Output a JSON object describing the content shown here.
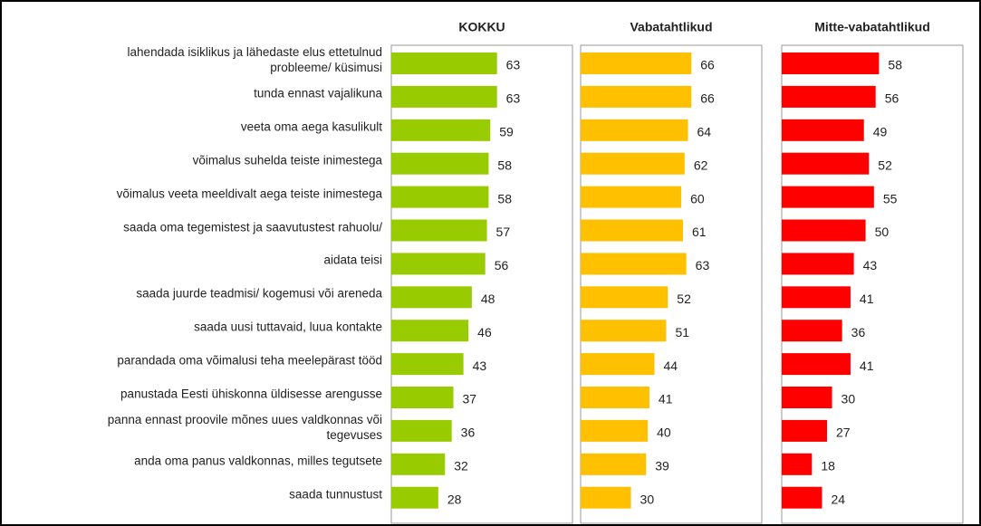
{
  "chart_data": {
    "type": "bar",
    "categories": [
      "lahendada isiklikus ja lähedaste elus ettetulnud\nprobleeme/ küsimusi",
      "tunda ennast vajalikuna",
      "veeta oma aega kasulikult",
      "võimalus suhelda teiste inimestega",
      "võimalus veeta meeldivalt aega teiste inimestega",
      "saada oma tegemistest ja saavutustest rahuolu/",
      "aidata teisi",
      "saada juurde teadmisi/ kogemusi või areneda",
      "saada uusi tuttavaid, luua kontakte",
      "parandada oma võimalusi teha meelepärast tööd",
      "panustada Eesti ühiskonna üldisesse arengusse",
      "panna ennast proovile mõnes uues valdkonnas või\ntegevuses",
      "anda oma panus valdkonnas, milles tegutsete",
      "saada tunnustust"
    ],
    "series": [
      {
        "name": "KOKKU",
        "color": "#99cc00",
        "values": [
          63,
          63,
          59,
          58,
          58,
          57,
          56,
          48,
          46,
          43,
          37,
          36,
          32,
          28
        ]
      },
      {
        "name": "Vabatahtlikud",
        "color": "#ffc000",
        "values": [
          66,
          66,
          64,
          62,
          60,
          61,
          63,
          52,
          51,
          44,
          41,
          40,
          39,
          30
        ]
      },
      {
        "name": "Mitte-vabatahtlikud",
        "color": "#ff0000",
        "values": [
          58,
          56,
          49,
          52,
          55,
          50,
          43,
          41,
          36,
          41,
          30,
          27,
          18,
          24
        ]
      }
    ],
    "xlim": [
      0,
      108
    ]
  }
}
